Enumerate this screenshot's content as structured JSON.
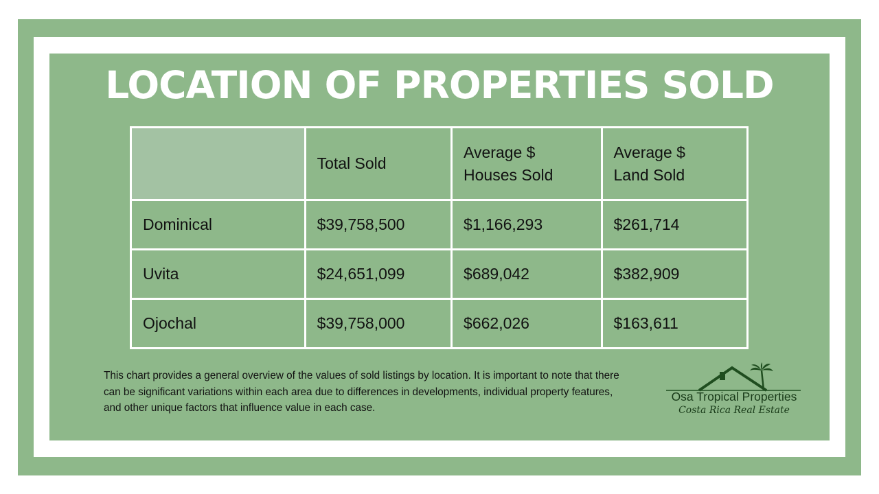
{
  "title": "LOCATION OF PROPERTIES SOLD",
  "chart_data": {
    "type": "table",
    "columns": [
      "",
      "Total Sold",
      "Average $ Houses Sold",
      "Average $ Land Sold"
    ],
    "rows": [
      {
        "location": "Dominical",
        "total_sold": "$39,758,500",
        "avg_houses": "$1,166,293",
        "avg_land": "$261,714"
      },
      {
        "location": "Uvita",
        "total_sold": "$24,651,099",
        "avg_houses": "$689,042",
        "avg_land": "$382,909"
      },
      {
        "location": "Ojochal",
        "total_sold": "$39,758,000",
        "avg_houses": "$662,026",
        "avg_land": "$163,611"
      }
    ]
  },
  "footnote": "This chart provides a general overview of the values of sold listings by location. It is important to note that there can be significant variations within each area due to differences in developments, individual property features, and other unique factors that influence value in each case.",
  "logo": {
    "name": "Osa Tropical Properties",
    "tagline": "Costa Rica Real Estate",
    "icon": "house-palm-icon"
  },
  "colors": {
    "frame_green": "#8eb88a",
    "header_corner": "#a3c2a3",
    "grid_lines": "#ffffff",
    "logo_green": "#1f4d1f"
  }
}
